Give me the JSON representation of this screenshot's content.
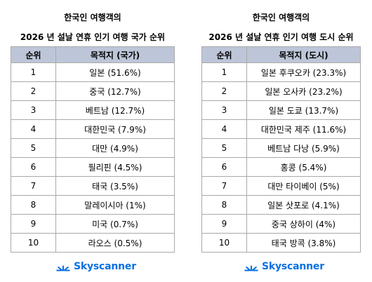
{
  "left": {
    "title_line1": "한국인 여행객의",
    "title_line2": "2026 년 설날 연휴 인기 여행 국가 순위",
    "headers": [
      "순위",
      "목적지 (국가)"
    ],
    "rows": [
      {
        "rank": "1",
        "dest": "일본 (51.6%)"
      },
      {
        "rank": "2",
        "dest": "중국 (12.7%)"
      },
      {
        "rank": "3",
        "dest": "베트남 (12.7%)"
      },
      {
        "rank": "4",
        "dest": "대한민국 (7.9%)"
      },
      {
        "rank": "5",
        "dest": "대만 (4.9%)"
      },
      {
        "rank": "6",
        "dest": "필리핀 (4.5%)"
      },
      {
        "rank": "7",
        "dest": "태국 (3.5%)"
      },
      {
        "rank": "8",
        "dest": "말레이시아 (1%)"
      },
      {
        "rank": "9",
        "dest": "미국 (0.7%)"
      },
      {
        "rank": "10",
        "dest": "라오스 (0.5%)"
      }
    ],
    "logo_text": "Skyscanner"
  },
  "right": {
    "title_line1": "한국인 여행객의",
    "title_line2": "2026 년 설날 연휴 인기 여행 도시 순위",
    "headers": [
      "순위",
      "목적지 (도시)"
    ],
    "rows": [
      {
        "rank": "1",
        "dest": "일본 후쿠오카 (23.3%)"
      },
      {
        "rank": "2",
        "dest": "일본 오사카 (23.2%)"
      },
      {
        "rank": "3",
        "dest": "일본 도쿄 (13.7%)"
      },
      {
        "rank": "4",
        "dest": "대한민국 제주 (11.6%)"
      },
      {
        "rank": "5",
        "dest": "베트남 다낭 (5.9%)"
      },
      {
        "rank": "6",
        "dest": "홍콩 (5.4%)"
      },
      {
        "rank": "7",
        "dest": "대만 타이베이 (5%)"
      },
      {
        "rank": "8",
        "dest": "일본 삿포로 (4.1%)"
      },
      {
        "rank": "9",
        "dest": "중국 상하이 (4%)"
      },
      {
        "rank": "10",
        "dest": "태국 방콕 (3.8%)"
      }
    ],
    "logo_text": "Skyscanner"
  },
  "colors": {
    "header_bg": "#bdc6d8",
    "border": "#a9a9a9",
    "brand": "#0770e3"
  },
  "icons": {
    "logo": "skyscanner-sunrise-icon"
  }
}
